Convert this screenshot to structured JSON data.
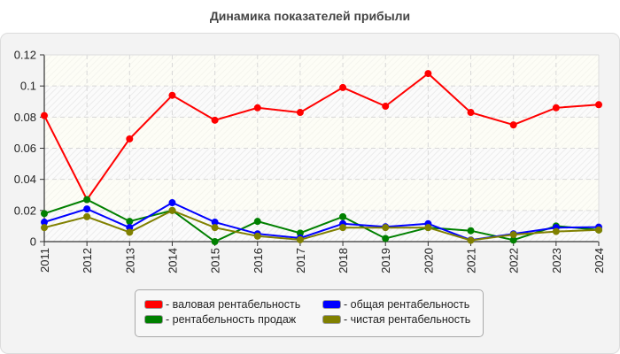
{
  "title": "Динамика показателей прибыли",
  "legend": {
    "items": [
      {
        "label": "- валовая рентабельность",
        "color": "#ff0000"
      },
      {
        "label": "- общая рентабельность",
        "color": "#0000ff"
      },
      {
        "label": "- рентабельность продаж",
        "color": "#008000"
      },
      {
        "label": "- чистая рентабельность",
        "color": "#808000"
      }
    ]
  },
  "chart_data": {
    "type": "line",
    "title": "Динамика показателей прибыли",
    "xlabel": "",
    "ylabel": "",
    "ylim": [
      0,
      0.12
    ],
    "yticks": [
      "0",
      "0.02",
      "0.04",
      "0.06",
      "0.08",
      "0.1",
      "0.12"
    ],
    "grid": true,
    "legend_position": "bottom",
    "categories": [
      "2011",
      "2012",
      "2013",
      "2014",
      "2015",
      "2016",
      "2017",
      "2018",
      "2019",
      "2020",
      "2021",
      "2022",
      "2023",
      "2024"
    ],
    "series": [
      {
        "name": "валовая рентабельность",
        "color": "#ff0000",
        "values": [
          0.081,
          0.027,
          0.066,
          0.094,
          0.078,
          0.086,
          0.083,
          0.099,
          0.087,
          0.108,
          0.083,
          0.075,
          0.086,
          0.088
        ]
      },
      {
        "name": "рентабельность продаж",
        "color": "#008000",
        "values": [
          0.018,
          0.027,
          0.013,
          0.02,
          0.0,
          0.013,
          0.0055,
          0.016,
          0.002,
          0.009,
          0.007,
          0.001,
          0.01,
          0.0075
        ]
      },
      {
        "name": "общая рентабельность",
        "color": "#0000ff",
        "values": [
          0.0125,
          0.021,
          0.009,
          0.025,
          0.0125,
          0.005,
          0.0023,
          0.0115,
          0.0095,
          0.0115,
          0.001,
          0.005,
          0.009,
          0.0093
        ]
      },
      {
        "name": "чистая рентабельность",
        "color": "#808000",
        "values": [
          0.009,
          0.016,
          0.006,
          0.02,
          0.009,
          0.0035,
          0.0012,
          0.009,
          0.009,
          0.009,
          0.0008,
          0.0045,
          0.0065,
          0.0075
        ]
      }
    ]
  }
}
